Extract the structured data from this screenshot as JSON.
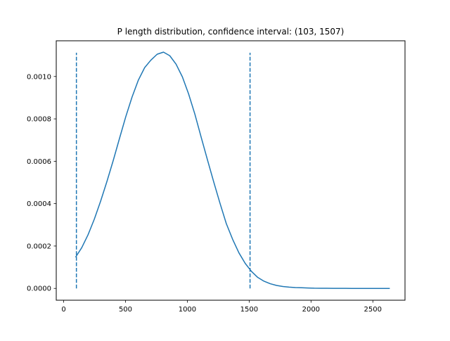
{
  "chart_data": {
    "type": "line",
    "title": "P length distribution, confidence interval:  (103, 1507)",
    "xlabel": "",
    "ylabel": "",
    "xlim": [
      -60,
      2760
    ],
    "ylim": [
      -5.57e-05,
      0.0011685
    ],
    "x_ticks": [
      0,
      500,
      1000,
      1500,
      2000,
      2500
    ],
    "x_tick_labels": [
      "0",
      "500",
      "1000",
      "1500",
      "2000",
      "2500"
    ],
    "y_ticks": [
      0.0,
      0.0002,
      0.0004,
      0.0006,
      0.0008,
      0.001
    ],
    "y_tick_labels": [
      "0.0000",
      "0.0002",
      "0.0004",
      "0.0006",
      "0.0008",
      "0.0010"
    ],
    "grid": false,
    "series": [
      {
        "color": "#1f77b4",
        "style": "solid",
        "x": [
          96,
          146,
          197,
          248,
          299,
          350,
          401,
          451,
          502,
          553,
          604,
          655,
          705,
          756,
          807,
          858,
          909,
          960,
          1010,
          1061,
          1112,
          1163,
          1214,
          1264,
          1315,
          1366,
          1417,
          1468,
          1519,
          1569,
          1620,
          1671,
          1722,
          1773,
          1823,
          1874,
          1925,
          1976,
          2027,
          2078,
          2128,
          2179,
          2230,
          2281,
          2332,
          2382,
          2433,
          2484,
          2535,
          2586,
          2637
        ],
        "y": [
          0.000147,
          0.000192,
          0.000253,
          0.000327,
          0.000412,
          0.000505,
          0.000604,
          0.000707,
          0.00081,
          0.000903,
          0.000983,
          0.001042,
          0.001077,
          0.001105,
          0.001115,
          0.001098,
          0.001058,
          0.000998,
          0.000918,
          0.000822,
          0.000713,
          0.000606,
          0.000501,
          0.000402,
          0.000306,
          0.000232,
          0.000168,
          0.000118,
          8e-05,
          5.2e-05,
          3.4e-05,
          2.2e-05,
          1.4e-05,
          9e-06,
          6e-06,
          4e-06,
          3e-06,
          2e-06,
          1e-06,
          7e-07,
          5e-07,
          3e-07,
          2e-07,
          1e-07,
          8e-08,
          5e-08,
          3e-08,
          2e-08,
          1e-08,
          5e-09,
          0.0
        ]
      }
    ],
    "vlines": [
      {
        "x": 103,
        "ymin": 0.0,
        "ymax": 0.001112,
        "color": "#1f77b4",
        "style": "dashed"
      },
      {
        "x": 1507,
        "ymin": 0.0,
        "ymax": 0.001112,
        "color": "#1f77b4",
        "style": "dashed"
      }
    ]
  }
}
